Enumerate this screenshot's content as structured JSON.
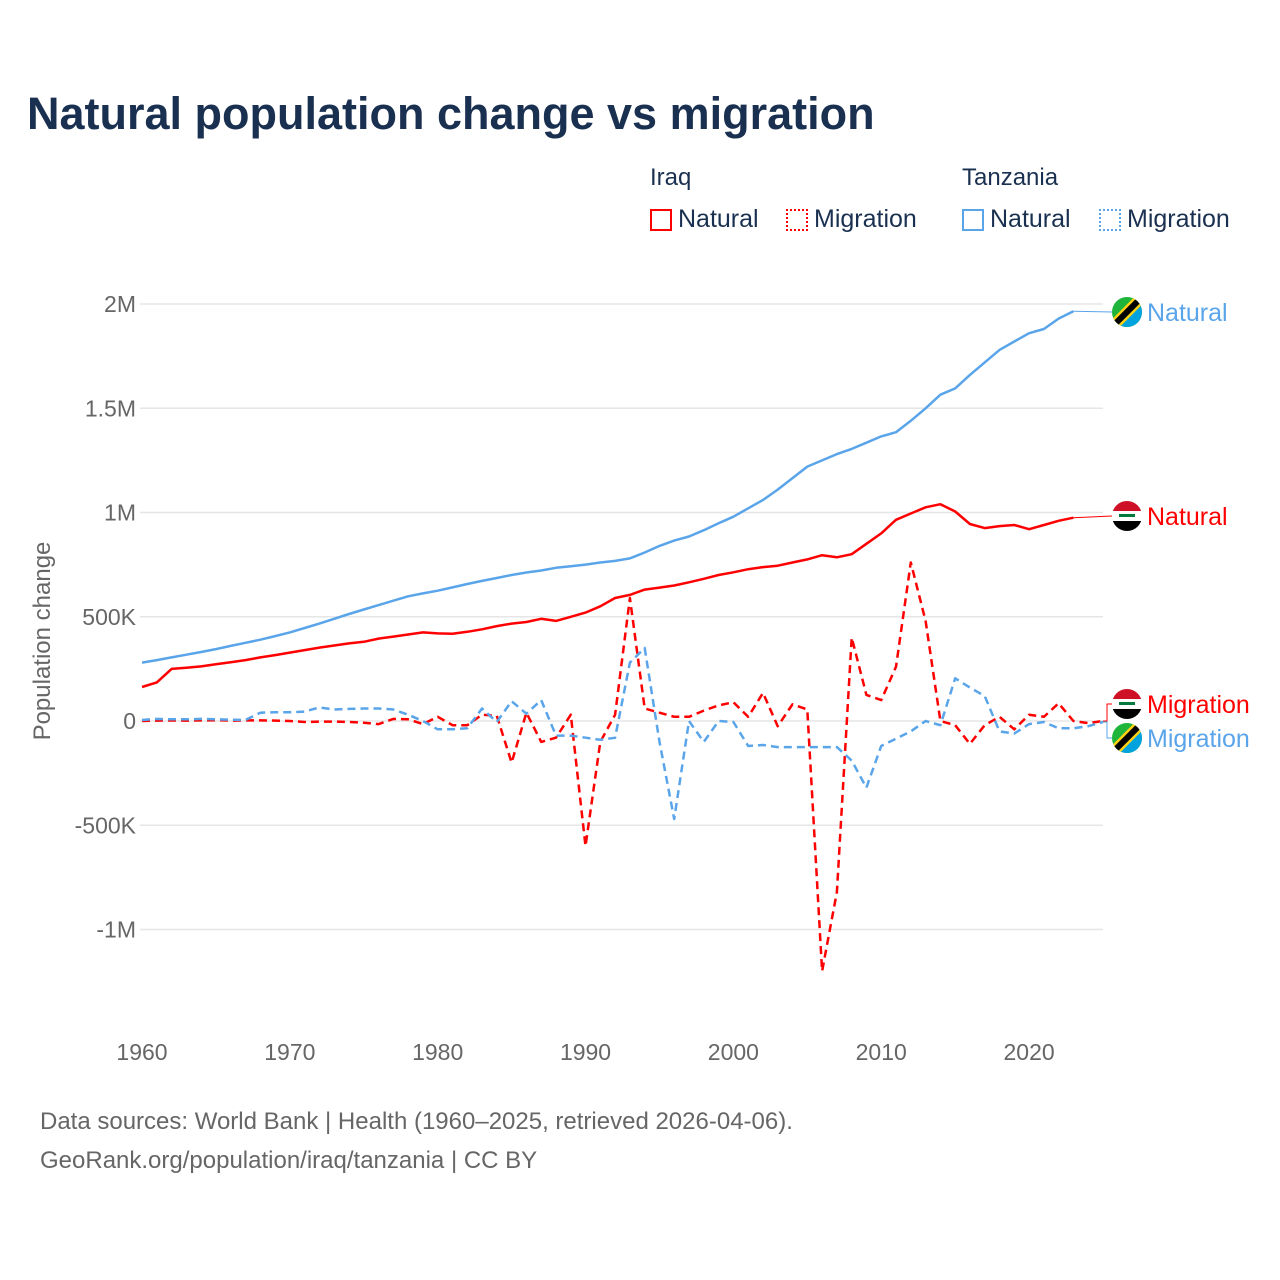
{
  "title": "Natural population change vs migration",
  "legend": {
    "groups": [
      {
        "country": "Iraq",
        "items": [
          "Natural",
          "Migration"
        ],
        "color": "#ff0000"
      },
      {
        "country": "Tanzania",
        "items": [
          "Natural",
          "Migration"
        ],
        "color": "#5aa5ea"
      }
    ]
  },
  "footer": {
    "line1": "Data sources: World Bank | Health (1960–2025, retrieved 2026-04-06).",
    "line2": "GeoRank.org/population/iraq/tanzania | CC BY"
  },
  "chart_data": {
    "type": "line",
    "title": "Natural population change vs migration",
    "ylabel": "Population change",
    "xlabel": "",
    "xlim": [
      1960,
      2025
    ],
    "ylim": [
      -1300000,
      2150000
    ],
    "x_ticks": [
      {
        "v": 1960,
        "label": "1960"
      },
      {
        "v": 1970,
        "label": "1970"
      },
      {
        "v": 1980,
        "label": "1980"
      },
      {
        "v": 1990,
        "label": "1990"
      },
      {
        "v": 2000,
        "label": "2000"
      },
      {
        "v": 2010,
        "label": "2010"
      },
      {
        "v": 2020,
        "label": "2020"
      }
    ],
    "y_ticks": [
      {
        "v": 2000000,
        "label": "2M"
      },
      {
        "v": 1500000,
        "label": "1.5M"
      },
      {
        "v": 1000000,
        "label": "1M"
      },
      {
        "v": 500000,
        "label": "500K"
      },
      {
        "v": 0,
        "label": "0"
      },
      {
        "v": -500000,
        "label": "-500K"
      },
      {
        "v": -1000000,
        "label": "-1M"
      }
    ],
    "grid": true,
    "series": [
      {
        "id": "tanzania-natural",
        "name": "Natural",
        "country": "Tanzania",
        "color": "#5aa5ea",
        "dash": false,
        "start": 1960,
        "values": [
          280000,
          292000,
          305000,
          318000,
          331000,
          345000,
          360000,
          375000,
          390000,
          407000,
          425000,
          446000,
          467000,
          490000,
          513000,
          535000,
          556000,
          577000,
          598000,
          612000,
          625000,
          641000,
          657000,
          672000,
          686000,
          700000,
          712000,
          722000,
          735000,
          742000,
          750000,
          760000,
          768000,
          780000,
          808000,
          840000,
          865000,
          885000,
          915000,
          948000,
          980000,
          1020000,
          1060000,
          1110000,
          1165000,
          1220000,
          1250000,
          1280000,
          1305000,
          1335000,
          1365000,
          1385000,
          1440000,
          1500000,
          1565000,
          1595000,
          1660000,
          1720000,
          1780000,
          1820000,
          1860000,
          1880000,
          1930000,
          1965000
        ]
      },
      {
        "id": "iraq-natural",
        "name": "Natural",
        "country": "Iraq",
        "color": "#ff0000",
        "dash": false,
        "start": 1960,
        "values": [
          163000,
          185000,
          250000,
          255000,
          262000,
          272000,
          282000,
          292000,
          305000,
          316000,
          328000,
          340000,
          352000,
          362000,
          372000,
          380000,
          395000,
          405000,
          415000,
          425000,
          420000,
          418000,
          428000,
          440000,
          455000,
          467000,
          475000,
          490000,
          480000,
          500000,
          520000,
          550000,
          590000,
          605000,
          630000,
          640000,
          650000,
          665000,
          682000,
          700000,
          713000,
          728000,
          738000,
          745000,
          760000,
          775000,
          795000,
          785000,
          800000,
          850000,
          900000,
          965000,
          995000,
          1025000,
          1040000,
          1005000,
          945000,
          925000,
          935000,
          940000,
          920000,
          940000,
          960000,
          975000
        ]
      },
      {
        "id": "iraq-migration",
        "name": "Migration",
        "country": "Iraq",
        "color": "#ff0000",
        "dash": true,
        "start": 1960,
        "values": [
          0,
          2000,
          3000,
          2000,
          3000,
          4000,
          2000,
          3000,
          3000,
          2000,
          0,
          -5000,
          -3000,
          -3000,
          -5000,
          -8000,
          -15000,
          10000,
          8000,
          -15000,
          20000,
          -20000,
          -20000,
          30000,
          25000,
          -200000,
          40000,
          -100000,
          -80000,
          30000,
          -600000,
          -100000,
          30000,
          590000,
          60000,
          40000,
          20000,
          20000,
          50000,
          75000,
          90000,
          20000,
          135000,
          -25000,
          80000,
          55000,
          -1200000,
          -820000,
          400000,
          125000,
          100000,
          260000,
          760000,
          480000,
          0,
          -20000,
          -110000,
          -20000,
          20000,
          -40000,
          30000,
          20000,
          85000,
          0,
          -10000,
          0
        ]
      },
      {
        "id": "tanzania-migration",
        "name": "Migration",
        "country": "Tanzania",
        "color": "#5aa5ea",
        "dash": true,
        "start": 1960,
        "values": [
          5000,
          10000,
          8000,
          8000,
          10000,
          8000,
          6000,
          5000,
          40000,
          42000,
          42000,
          45000,
          65000,
          55000,
          58000,
          60000,
          60000,
          55000,
          30000,
          0,
          -40000,
          -40000,
          -35000,
          60000,
          -5000,
          95000,
          35000,
          100000,
          -70000,
          -70000,
          -80000,
          -90000,
          -80000,
          280000,
          350000,
          -100000,
          -470000,
          0,
          -100000,
          0,
          -5000,
          -120000,
          -115000,
          -125000,
          -125000,
          -125000,
          -125000,
          -125000,
          -190000,
          -320000,
          -120000,
          -85000,
          -50000,
          0,
          -20000,
          205000,
          160000,
          120000,
          -50000,
          -60000,
          -15000,
          -5000,
          -35000,
          -35000,
          -25000,
          -5000
        ]
      }
    ],
    "end_labels": [
      {
        "series": "tanzania-natural",
        "text": "Natural"
      },
      {
        "series": "iraq-natural",
        "text": "Natural"
      },
      {
        "series": "iraq-migration",
        "text": "Migration"
      },
      {
        "series": "tanzania-migration",
        "text": "Migration"
      }
    ]
  }
}
